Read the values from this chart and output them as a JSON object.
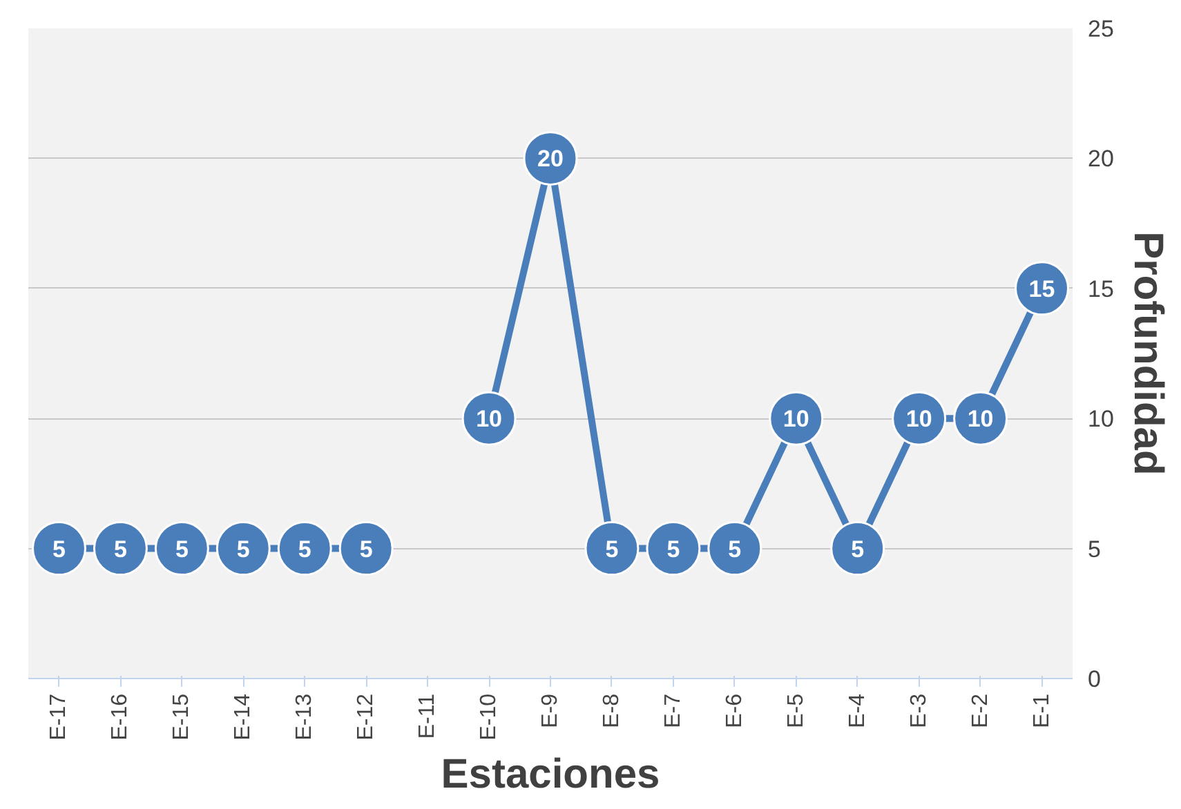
{
  "chart_data": {
    "type": "line",
    "xlabel": "Estaciones",
    "ylabel": "Profundidad",
    "categories": [
      "E-17",
      "E-16",
      "E-15",
      "E-14",
      "E-13",
      "E-12",
      "E-11",
      "E-10",
      "E-9",
      "E-8",
      "E-7",
      "E-6",
      "E-5",
      "E-4",
      "E-3",
      "E-2",
      "E-1"
    ],
    "series": [
      {
        "color": "#4a7ebb",
        "values": [
          5,
          5,
          5,
          5,
          5,
          5,
          null,
          10,
          20,
          5,
          5,
          5,
          10,
          5,
          10,
          10,
          15
        ]
      }
    ],
    "ylim": [
      0,
      25
    ],
    "yticks": [
      0,
      5,
      10,
      15,
      20,
      25
    ],
    "grid": "y",
    "marker": "circle",
    "line_style": "solid",
    "data_labels": true
  }
}
